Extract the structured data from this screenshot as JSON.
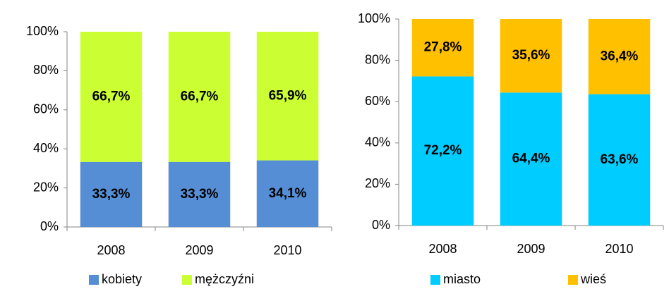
{
  "chart_data": [
    {
      "type": "stacked-bar",
      "categories": [
        "2008",
        "2009",
        "2010"
      ],
      "series": [
        {
          "name": "kobiety",
          "color": "#558ed5",
          "values": [
            33.3,
            33.3,
            34.1
          ],
          "value_labels": [
            "33,3%",
            "33,3%",
            "34,1%"
          ]
        },
        {
          "name": "mężczyźni",
          "color": "#ccff33",
          "values": [
            66.7,
            66.7,
            65.9
          ],
          "value_labels": [
            "66,7%",
            "66,7%",
            "65,9%"
          ]
        }
      ],
      "ylim": [
        0,
        100
      ],
      "yticks": [
        {
          "value": 0,
          "label": "0%"
        },
        {
          "value": 20,
          "label": "20%"
        },
        {
          "value": 40,
          "label": "40%"
        },
        {
          "value": 60,
          "label": "60%"
        },
        {
          "value": 80,
          "label": "80%"
        },
        {
          "value": 100,
          "label": "100%"
        }
      ],
      "legend": "bottom"
    },
    {
      "type": "stacked-bar",
      "categories": [
        "2008",
        "2009",
        "2010"
      ],
      "series": [
        {
          "name": "miasto",
          "color": "#00ccff",
          "values": [
            72.2,
            64.4,
            63.6
          ],
          "value_labels": [
            "72,2%",
            "64,4%",
            "63,6%"
          ]
        },
        {
          "name": "wieś",
          "color": "#ffc000",
          "values": [
            27.8,
            35.6,
            36.4
          ],
          "value_labels": [
            "27,8%",
            "35,6%",
            "36,4%"
          ]
        }
      ],
      "ylim": [
        0,
        100
      ],
      "yticks": [
        {
          "value": 0,
          "label": "0%"
        },
        {
          "value": 20,
          "label": "20%"
        },
        {
          "value": 40,
          "label": "40%"
        },
        {
          "value": 60,
          "label": "60%"
        },
        {
          "value": 80,
          "label": "80%"
        },
        {
          "value": 100,
          "label": "100%"
        }
      ],
      "legend": "bottom"
    }
  ]
}
